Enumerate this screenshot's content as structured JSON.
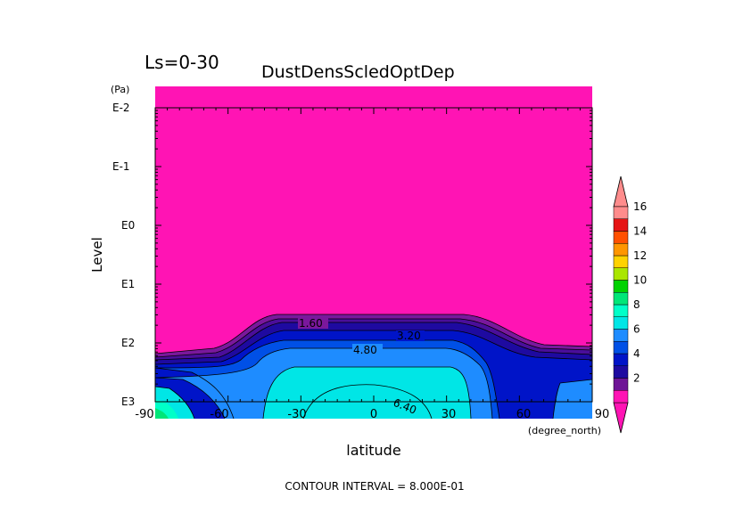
{
  "chart_data": {
    "type": "heatmap",
    "plot_style": "filled contour",
    "title_left": "Ls=0-30",
    "title": "DustDensScledOptDep",
    "xlabel": "latitude",
    "x_unit": "(degree_north)",
    "ylabel": "Level",
    "y_unit": "(Pa)",
    "xlim": [
      -90,
      90
    ],
    "x_ticks": [
      "-90",
      "-60",
      "-30",
      "0",
      "30",
      "60",
      "90"
    ],
    "y_scale": "log",
    "ylim_pa": [
      0.01,
      1000
    ],
    "y_ticks": [
      "E-2",
      "E-1",
      "E0",
      "E1",
      "E2",
      "E3"
    ],
    "footer": "CONTOUR INTERVAL = 8.000E-01",
    "contour_interval": 0.8,
    "contour_labels": [
      "1.60",
      "3.20",
      "4.80",
      "6.40"
    ],
    "colorbar": {
      "orientation": "vertical",
      "placement": "right",
      "tick_labels": [
        "2",
        "4",
        "6",
        "8",
        "10",
        "12",
        "14",
        "16"
      ],
      "colors": [
        "#ff14b4",
        "#6e1496",
        "#1e0aa0",
        "#0014c8",
        "#0050e6",
        "#1e8cff",
        "#00e6e6",
        "#00ffc8",
        "#00e678",
        "#00d200",
        "#aae600",
        "#ffd200",
        "#ff9600",
        "#ff5000",
        "#e61414",
        "#ff8c8c"
      ]
    }
  }
}
